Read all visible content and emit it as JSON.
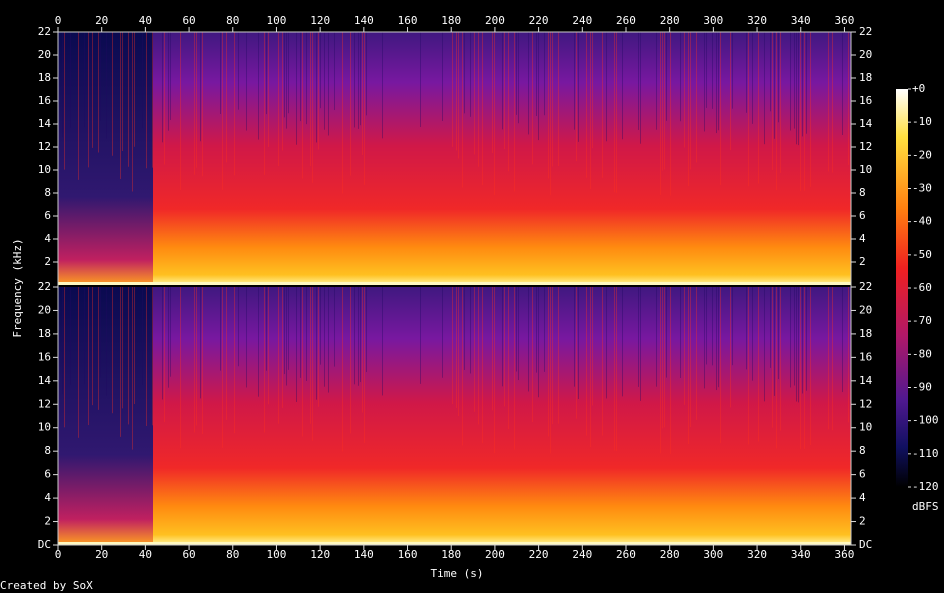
{
  "chart_data": {
    "type": "spectrogram",
    "xlabel": "Time (s)",
    "ylabel": "Frequency (kHz)",
    "xlim": [
      0,
      363
    ],
    "xticks": [
      0,
      20,
      40,
      60,
      80,
      100,
      120,
      140,
      160,
      180,
      200,
      220,
      240,
      260,
      280,
      300,
      320,
      340,
      360
    ],
    "channels": [
      {
        "ylim": [
          0,
          22
        ],
        "yticks": [
          2,
          4,
          6,
          8,
          10,
          12,
          14,
          16,
          18,
          20,
          22
        ]
      },
      {
        "ylim": [
          0,
          22
        ],
        "yticks": [
          {
            "value": 0,
            "label": "DC"
          },
          2,
          4,
          6,
          8,
          10,
          12,
          14,
          16,
          18,
          20,
          22
        ]
      }
    ],
    "colorbar": {
      "label": "dBFS",
      "lim": [
        -120,
        0
      ],
      "ticks": [
        {
          "value": 0,
          "label": "+0"
        },
        -10,
        -20,
        -30,
        -40,
        -50,
        -60,
        -70,
        -80,
        -90,
        -100,
        -110,
        -120
      ]
    },
    "footer": "Created by SoX"
  }
}
